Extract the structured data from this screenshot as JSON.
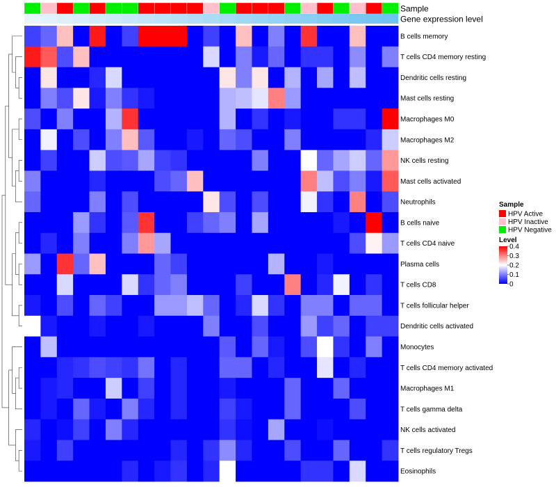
{
  "chart_data": {
    "type": "heatmap",
    "annotation_labels": [
      "Sample",
      "Gene expression level"
    ],
    "rows": [
      "B cells memory",
      "T cells CD4 memory resting",
      "Dendritic cells resting",
      "Mast cells resting",
      "Macrophages M0",
      "Macrophages M2",
      "NK cells resting",
      "Mast cells activated",
      "Neutrophils",
      "B cells naive",
      "T cells CD4 naive",
      "Plasma cells",
      "T cells CD8",
      "T cells follicular helper",
      "Dendritic cells activated",
      "Monocytes",
      "T cells CD4 memory activated",
      "Macrophages M1",
      "T cells gamma delta",
      "NK cells activated",
      "T cells regulatory  Tregs",
      "Eosinophils"
    ],
    "sample_groups": [
      "HPV Negative",
      "HPV Inactive",
      "HPV Active",
      "HPV Negative",
      "HPV Active",
      "HPV Negative",
      "HPV Negative",
      "HPV Active",
      "HPV Active",
      "HPV Active",
      "HPV Active",
      "HPV Inactive",
      "HPV Negative",
      "HPV Active",
      "HPV Active",
      "HPV Active",
      "HPV Negative",
      "HPV Inactive",
      "HPV Active",
      "HPV Negative",
      "HPV Inactive",
      "HPV Active",
      "HPV Negative"
    ],
    "expression_levels": [
      0.05,
      0.06,
      0.07,
      0.08,
      0.09,
      0.1,
      0.11,
      0.12,
      0.13,
      0.14,
      0.15,
      0.16,
      0.17,
      0.18,
      0.19,
      0.2,
      0.21,
      0.22,
      0.23,
      0.24,
      0.25,
      0.26,
      0.27
    ],
    "values": [
      [
        0.05,
        0.08,
        0.25,
        0.0,
        0.38,
        0.0,
        0.05,
        0.4,
        0.4,
        0.4,
        0.0,
        0.05,
        0.0,
        0.25,
        0.0,
        0.1,
        0.0,
        0.36,
        0.0,
        0.0,
        0.25,
        0.0,
        0.0
      ],
      [
        0.38,
        0.33,
        0.06,
        0.25,
        0.0,
        0.0,
        0.0,
        0.0,
        0.0,
        0.0,
        0.0,
        0.17,
        0.0,
        0.1,
        0.02,
        0.08,
        0.0,
        0.04,
        0.04,
        0.0,
        0.11,
        0.0,
        0.1
      ],
      [
        0.0,
        0.22,
        0.0,
        0.0,
        0.03,
        0.17,
        0.0,
        0.0,
        0.0,
        0.0,
        0.0,
        0.0,
        0.22,
        0.1,
        0.22,
        0.0,
        0.14,
        0.0,
        0.13,
        0.0,
        0.15,
        0.0,
        0.0
      ],
      [
        0.0,
        0.1,
        0.06,
        0.22,
        0.02,
        0.1,
        0.04,
        0.02,
        0.0,
        0.0,
        0.0,
        0.0,
        0.14,
        0.15,
        0.18,
        0.3,
        0.12,
        0.0,
        0.0,
        0.0,
        0.0,
        0.0,
        0.0
      ],
      [
        0.06,
        0.0,
        0.1,
        0.0,
        0.0,
        0.14,
        0.36,
        0.0,
        0.0,
        0.0,
        0.0,
        0.0,
        0.14,
        0.0,
        0.04,
        0.0,
        0.02,
        0.0,
        0.0,
        0.04,
        0.04,
        0.0,
        0.4
      ],
      [
        0.0,
        0.19,
        0.0,
        0.06,
        0.0,
        0.1,
        0.25,
        0.07,
        0.0,
        0.0,
        0.02,
        0.0,
        0.08,
        0.06,
        0.0,
        0.0,
        0.1,
        0.0,
        0.0,
        0.0,
        0.0,
        0.03,
        0.16
      ],
      [
        0.0,
        0.05,
        0.0,
        0.0,
        0.16,
        0.06,
        0.07,
        0.13,
        0.05,
        0.04,
        0.0,
        0.0,
        0.0,
        0.0,
        0.1,
        0.0,
        0.0,
        0.2,
        0.08,
        0.13,
        0.16,
        0.08,
        0.28
      ],
      [
        0.1,
        0.0,
        0.0,
        0.0,
        0.03,
        0.0,
        0.0,
        0.0,
        0.06,
        0.08,
        0.25,
        0.0,
        0.0,
        0.0,
        0.0,
        0.0,
        0.0,
        0.3,
        0.15,
        0.06,
        0.1,
        0.02,
        0.33
      ],
      [
        0.08,
        0.0,
        0.0,
        0.0,
        0.1,
        0.0,
        0.06,
        0.0,
        0.0,
        0.0,
        0.0,
        0.22,
        0.06,
        0.0,
        0.06,
        0.0,
        0.0,
        0.19,
        0.04,
        0.0,
        0.3,
        0.0,
        0.06
      ],
      [
        0.0,
        0.0,
        0.0,
        0.12,
        0.04,
        0.0,
        0.07,
        0.36,
        0.0,
        0.0,
        0.05,
        0.08,
        0.1,
        0.0,
        0.13,
        0.0,
        0.0,
        0.0,
        0.0,
        0.02,
        0.0,
        0.4,
        0.0
      ],
      [
        0.0,
        0.03,
        0.0,
        0.1,
        0.0,
        0.0,
        0.1,
        0.28,
        0.13,
        0.0,
        0.0,
        0.0,
        0.0,
        0.0,
        0.0,
        0.0,
        0.0,
        0.0,
        0.0,
        0.0,
        0.06,
        0.21,
        0.12
      ],
      [
        0.12,
        0.0,
        0.36,
        0.08,
        0.25,
        0.0,
        0.0,
        0.0,
        0.08,
        0.05,
        0.0,
        0.0,
        0.0,
        0.0,
        0.0,
        0.14,
        0.0,
        0.0,
        0.02,
        0.0,
        0.0,
        0.0,
        0.0
      ],
      [
        0.0,
        0.0,
        0.17,
        0.0,
        0.0,
        0.0,
        0.17,
        0.04,
        0.08,
        0.1,
        0.0,
        0.0,
        0.0,
        0.05,
        0.0,
        0.0,
        0.3,
        0.0,
        0.03,
        0.19,
        0.0,
        0.04,
        0.0
      ],
      [
        0.02,
        0.0,
        0.06,
        0.0,
        0.08,
        0.05,
        0.0,
        0.0,
        0.12,
        0.12,
        0.15,
        0.08,
        0.0,
        0.03,
        0.17,
        0.04,
        0.0,
        0.1,
        0.1,
        0.0,
        0.08,
        0.08,
        0.0
      ],
      [
        0.2,
        0.02,
        0.0,
        0.0,
        0.02,
        0.0,
        0.0,
        0.02,
        0.0,
        0.0,
        0.0,
        0.1,
        0.0,
        0.0,
        0.06,
        0.0,
        0.0,
        0.12,
        0.05,
        0.08,
        0.0,
        0.05,
        0.05
      ],
      [
        0.0,
        0.15,
        0.0,
        0.0,
        0.0,
        0.0,
        0.0,
        0.0,
        0.0,
        0.0,
        0.0,
        0.0,
        0.07,
        0.0,
        0.08,
        0.02,
        0.0,
        0.06,
        0.2,
        0.04,
        0.0,
        0.1,
        0.0
      ],
      [
        0.0,
        0.0,
        0.03,
        0.04,
        0.06,
        0.05,
        0.04,
        0.09,
        0.0,
        0.03,
        0.0,
        0.0,
        0.08,
        0.08,
        0.0,
        0.03,
        0.0,
        0.0,
        0.18,
        0.0,
        0.03,
        0.0,
        0.0
      ],
      [
        0.0,
        0.02,
        0.03,
        0.0,
        0.0,
        0.16,
        0.0,
        0.05,
        0.0,
        0.03,
        0.0,
        0.0,
        0.02,
        0.0,
        0.0,
        0.0,
        0.08,
        0.0,
        0.0,
        0.08,
        0.0,
        0.0,
        0.0
      ],
      [
        0.0,
        0.02,
        0.0,
        0.08,
        0.02,
        0.0,
        0.1,
        0.03,
        0.0,
        0.03,
        0.0,
        0.0,
        0.05,
        0.02,
        0.0,
        0.0,
        0.08,
        0.0,
        0.0,
        0.0,
        0.06,
        0.0,
        0.0
      ],
      [
        0.03,
        0.0,
        0.01,
        0.05,
        0.0,
        0.1,
        0.03,
        0.0,
        0.0,
        0.0,
        0.0,
        0.0,
        0.04,
        0.01,
        0.0,
        0.13,
        0.0,
        0.0,
        0.01,
        0.0,
        0.0,
        0.0,
        0.0
      ],
      [
        0.02,
        0.0,
        0.05,
        0.0,
        0.0,
        0.0,
        0.0,
        0.0,
        0.0,
        0.03,
        0.0,
        0.04,
        0.11,
        0.03,
        0.0,
        0.0,
        0.06,
        0.0,
        0.0,
        0.08,
        0.0,
        0.0,
        0.04
      ],
      [
        0.0,
        0.0,
        0.0,
        0.0,
        0.0,
        0.0,
        0.03,
        0.0,
        0.02,
        0.04,
        0.0,
        0.03,
        0.2,
        0.0,
        0.0,
        0.0,
        0.0,
        0.04,
        0.04,
        0.0,
        0.17,
        0.0,
        0.0
      ]
    ],
    "legend": {
      "sample_title": "Sample",
      "sample_items": [
        {
          "label": "HPV Active",
          "color": "#ff0000"
        },
        {
          "label": "HPV Inactive",
          "color": "#ffc0cb"
        },
        {
          "label": "HPV Negative",
          "color": "#00ee00"
        }
      ],
      "level_title": "Level",
      "level_ticks": [
        0,
        0.1,
        0.2,
        0.3,
        0.4
      ],
      "level_tick_labels": [
        "0",
        "0.1",
        "0.2",
        "0.3",
        "0.4"
      ],
      "value_range": [
        0,
        0.4
      ]
    },
    "colors": {
      "low": "#0000ff",
      "mid": "#ffffff",
      "high": "#ff0000",
      "expression_low": "#e8f4fb",
      "expression_high": "#6ec3f0"
    }
  }
}
